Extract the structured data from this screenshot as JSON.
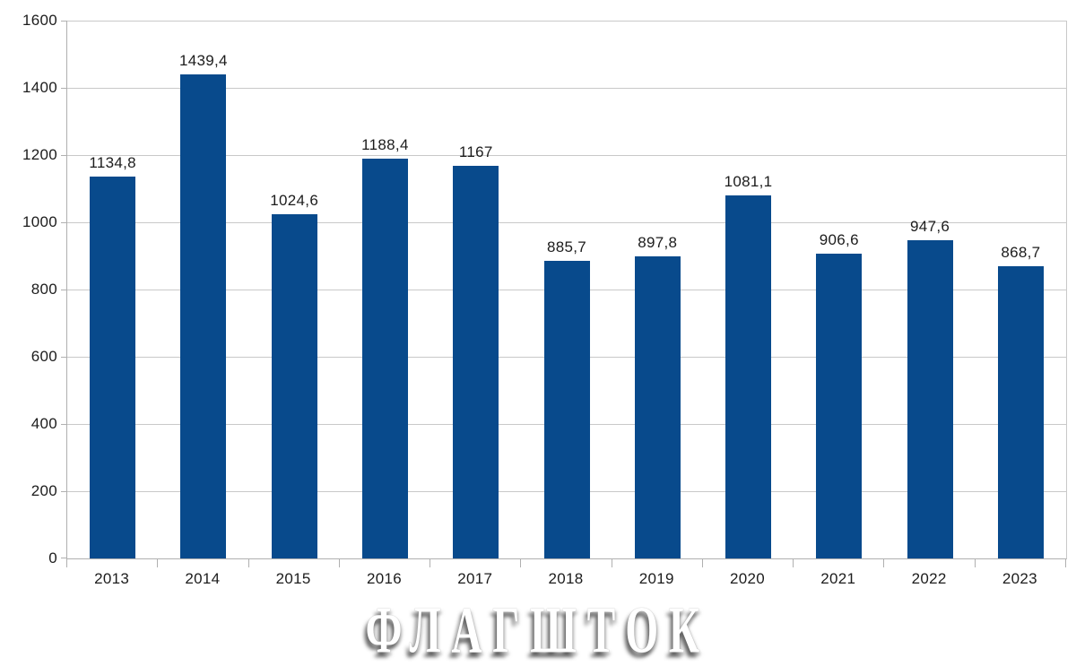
{
  "chart_data": {
    "type": "bar",
    "title": "",
    "xlabel": "",
    "ylabel": "",
    "categories": [
      "2013",
      "2014",
      "2015",
      "2016",
      "2017",
      "2018",
      "2019",
      "2020",
      "2021",
      "2022",
      "2023"
    ],
    "values": [
      1134.8,
      1439.4,
      1024.6,
      1188.4,
      1167,
      885.7,
      897.8,
      1081.1,
      906.6,
      947.6,
      868.7
    ],
    "value_labels": [
      "1134,8",
      "1439,4",
      "1024,6",
      "1188,4",
      "1167",
      "885,7",
      "897,8",
      "1081,1",
      "906,6",
      "947,6",
      "868,7"
    ],
    "ylim": [
      0,
      1600
    ],
    "yticks": [
      0,
      200,
      400,
      600,
      800,
      1000,
      1200,
      1400,
      1600
    ],
    "grid": true,
    "legend": false,
    "colors": {
      "bar": "#084a8c",
      "grid": "#c9c9c9",
      "axis": "#b0b0b0",
      "text": "#1c1c1c"
    }
  },
  "watermark": {
    "text": "ФЛАГШТОК"
  }
}
